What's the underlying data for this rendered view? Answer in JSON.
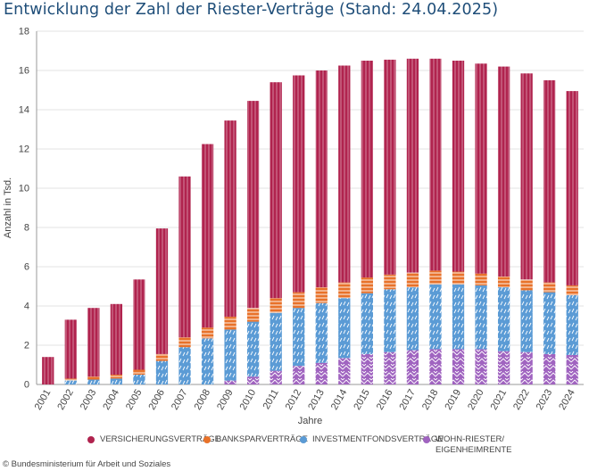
{
  "chart_data": {
    "type": "bar",
    "stacked": true,
    "title": "Entwicklung der Zahl der Riester-Verträge (Stand: 24.04.2025)",
    "xlabel": "Jahre",
    "ylabel": "Anzahl in Tsd.",
    "ylim": [
      0,
      18
    ],
    "yticks": [
      "0",
      "2",
      "4",
      "6",
      "8",
      "10",
      "12",
      "14",
      "16",
      "18"
    ],
    "grid": true,
    "legend_position": "bottom",
    "categories": [
      "2001",
      "2002",
      "2003",
      "2004",
      "2005",
      "2006",
      "2007",
      "2008",
      "2009",
      "2010",
      "2011",
      "2012",
      "2013",
      "2014",
      "2015",
      "2016",
      "2017",
      "2018",
      "2019",
      "2020",
      "2021",
      "2022",
      "2023",
      "2024"
    ],
    "series": [
      {
        "name": "WOHN-RIESTER/\nEIGENHEIMRENTE",
        "color": "#a064c0",
        "values": [
          0,
          0,
          0,
          0,
          0,
          0,
          0,
          0,
          0.2,
          0.4,
          0.7,
          0.95,
          1.1,
          1.35,
          1.55,
          1.65,
          1.75,
          1.8,
          1.8,
          1.8,
          1.7,
          1.65,
          1.55,
          1.5
        ]
      },
      {
        "name": "INVESTMENTFONDSVERTRÄGE",
        "color": "#5b9bd5",
        "values": [
          0,
          0.2,
          0.25,
          0.3,
          0.5,
          1.2,
          1.9,
          2.35,
          2.6,
          2.8,
          2.95,
          2.95,
          3.05,
          3.05,
          3.1,
          3.2,
          3.2,
          3.3,
          3.3,
          3.25,
          3.25,
          3.15,
          3.15,
          3.05
        ]
      },
      {
        "name": "BANKSPARVERTRÄGE",
        "color": "#e8722a",
        "values": [
          0,
          0.1,
          0.15,
          0.2,
          0.25,
          0.35,
          0.5,
          0.55,
          0.65,
          0.7,
          0.75,
          0.8,
          0.8,
          0.8,
          0.8,
          0.75,
          0.75,
          0.7,
          0.65,
          0.6,
          0.55,
          0.55,
          0.5,
          0.5
        ]
      },
      {
        "name": "VERSICHERUNGSVERTRÄGE",
        "color": "#b0234e",
        "values": [
          1.4,
          3.0,
          3.5,
          3.6,
          4.6,
          6.4,
          8.2,
          9.35,
          10.0,
          10.55,
          11.0,
          11.05,
          11.05,
          11.05,
          11.05,
          10.95,
          10.9,
          10.8,
          10.75,
          10.7,
          10.7,
          10.5,
          10.3,
          9.9
        ]
      }
    ]
  },
  "legend": [
    {
      "label": "VERSICHERUNGSVERTRÄGE",
      "color": "#b0234e"
    },
    {
      "label": "BANKSPARVERTRÄGE",
      "color": "#e8722a"
    },
    {
      "label": "INVESTMENTFONDSVERTRÄGE",
      "color": "#5b9bd5"
    },
    {
      "label": "WOHN-RIESTER/\nEIGENHEIMRENTE",
      "color": "#a064c0"
    }
  ],
  "copyright": "© Bundesministerium für Arbeit und Soziales"
}
